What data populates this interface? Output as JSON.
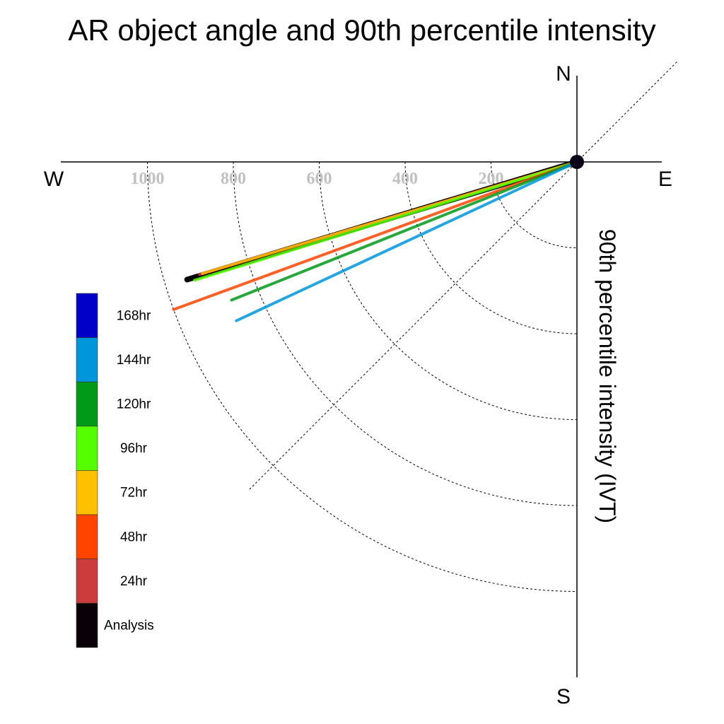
{
  "chart_data": {
    "type": "polar-vector",
    "title": "AR object angle and 90th percentile intensity",
    "ylabel": "90th percentile intensity (IVT)",
    "compass": {
      "north": "N",
      "south": "S",
      "east": "E",
      "west": "W"
    },
    "radial_ticks": [
      "200",
      "400",
      "600",
      "800",
      "1000"
    ],
    "radial_tick_values": [
      200,
      400,
      600,
      800,
      1000
    ],
    "radial_max": 1200,
    "diagonal_angles_deg": [
      45,
      225
    ],
    "series": [
      {
        "name": "Analysis",
        "color": "#0a0008",
        "angle_deg": 253.2,
        "intensity": 948
      },
      {
        "name": "24hr",
        "color": "#cc3c3c",
        "angle_deg": 253.4,
        "intensity": 917
      },
      {
        "name": "72hr",
        "color": "#ffc000",
        "angle_deg": 253.4,
        "intensity": 910
      },
      {
        "name": "96hr",
        "color": "#55ff00",
        "angle_deg": 252.8,
        "intensity": 932
      },
      {
        "name": "48hr",
        "color": "#ff4400",
        "angle_deg": 249.9,
        "intensity": 1000
      },
      {
        "name": "120hr",
        "color": "#009a18",
        "angle_deg": 248.2,
        "intensity": 866
      },
      {
        "name": "144hr",
        "color": "#0096dc",
        "angle_deg": 245.0,
        "intensity": 875
      }
    ],
    "legend": [
      {
        "label": "168hr",
        "color": "#0000c8"
      },
      {
        "label": "144hr",
        "color": "#0096dc"
      },
      {
        "label": "120hr",
        "color": "#009a18"
      },
      {
        "label": "96hr",
        "color": "#55ff00"
      },
      {
        "label": "72hr",
        "color": "#ffc000"
      },
      {
        "label": "48hr",
        "color": "#ff4400"
      },
      {
        "label": "24hr",
        "color": "#cc3c3c"
      },
      {
        "label": "Analysis",
        "color": "#0a0008"
      }
    ]
  }
}
